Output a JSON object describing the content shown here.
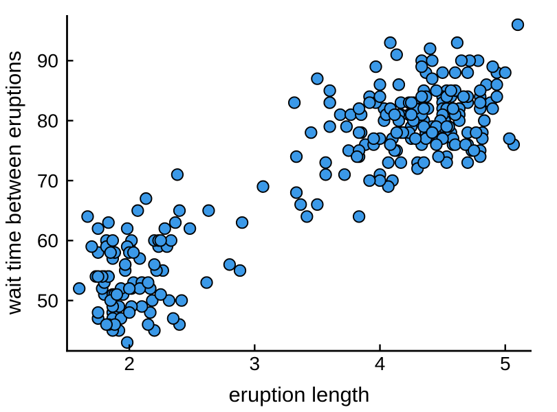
{
  "figure": {
    "background": "#ffffff"
  },
  "chart_data": {
    "type": "scatter",
    "title": "",
    "xlabel": "eruption length",
    "ylabel": "wait time between eruptions",
    "x_ticks": [
      2,
      3,
      4,
      5
    ],
    "y_ticks": [
      50,
      60,
      70,
      80,
      90
    ],
    "xlim": [
      1.5,
      5.21
    ],
    "ylim": [
      41.6,
      97.6
    ],
    "grid": false,
    "legend": "none",
    "marker": {
      "shape": "circle",
      "fill": "#3B99E8",
      "stroke": "#000000",
      "radius_px": 8.2
    },
    "axis_color": "#000000",
    "tick_direction": "in",
    "points": [
      [
        3.6,
        79
      ],
      [
        1.8,
        54
      ],
      [
        3.333,
        74
      ],
      [
        2.283,
        62
      ],
      [
        4.533,
        85
      ],
      [
        2.883,
        55
      ],
      [
        4.7,
        88
      ],
      [
        3.6,
        85
      ],
      [
        1.95,
        51
      ],
      [
        4.35,
        85
      ],
      [
        1.833,
        54
      ],
      [
        3.917,
        84
      ],
      [
        4.2,
        78
      ],
      [
        1.75,
        47
      ],
      [
        4.7,
        83
      ],
      [
        2.167,
        52
      ],
      [
        1.75,
        62
      ],
      [
        4.8,
        84
      ],
      [
        1.6,
        52
      ],
      [
        4.25,
        79
      ],
      [
        1.8,
        51
      ],
      [
        1.75,
        47
      ],
      [
        3.45,
        78
      ],
      [
        3.067,
        69
      ],
      [
        4.533,
        74
      ],
      [
        3.6,
        83
      ],
      [
        1.967,
        55
      ],
      [
        4.083,
        76
      ],
      [
        3.85,
        78
      ],
      [
        4.433,
        79
      ],
      [
        4.3,
        73
      ],
      [
        4.467,
        77
      ],
      [
        3.367,
        66
      ],
      [
        4.033,
        80
      ],
      [
        3.833,
        74
      ],
      [
        2.017,
        52
      ],
      [
        1.867,
        48
      ],
      [
        4.833,
        80
      ],
      [
        1.833,
        59
      ],
      [
        4.783,
        90
      ],
      [
        4.35,
        80
      ],
      [
        1.883,
        58
      ],
      [
        4.567,
        84
      ],
      [
        1.75,
        58
      ],
      [
        4.533,
        73
      ],
      [
        3.317,
        83
      ],
      [
        3.833,
        64
      ],
      [
        2.1,
        53
      ],
      [
        4.633,
        82
      ],
      [
        2.0,
        59
      ],
      [
        4.8,
        75
      ],
      [
        4.716,
        90
      ],
      [
        1.833,
        54
      ],
      [
        4.833,
        80
      ],
      [
        1.733,
        54
      ],
      [
        4.883,
        83
      ],
      [
        3.717,
        71
      ],
      [
        1.667,
        64
      ],
      [
        4.567,
        77
      ],
      [
        4.317,
        81
      ],
      [
        2.233,
        59
      ],
      [
        4.5,
        84
      ],
      [
        1.75,
        48
      ],
      [
        4.8,
        82
      ],
      [
        1.817,
        60
      ],
      [
        4.4,
        92
      ],
      [
        4.167,
        78
      ],
      [
        4.7,
        78
      ],
      [
        2.067,
        65
      ],
      [
        4.7,
        73
      ],
      [
        4.033,
        82
      ],
      [
        1.967,
        56
      ],
      [
        4.5,
        79
      ],
      [
        4.0,
        71
      ],
      [
        1.983,
        62
      ],
      [
        5.067,
        76
      ],
      [
        2.017,
        60
      ],
      [
        4.567,
        78
      ],
      [
        3.883,
        76
      ],
      [
        3.6,
        83
      ],
      [
        4.133,
        75
      ],
      [
        4.333,
        82
      ],
      [
        4.1,
        70
      ],
      [
        2.633,
        65
      ],
      [
        4.067,
        73
      ],
      [
        4.933,
        88
      ],
      [
        3.95,
        76
      ],
      [
        4.517,
        80
      ],
      [
        2.167,
        48
      ],
      [
        4.0,
        86
      ],
      [
        2.2,
        60
      ],
      [
        4.333,
        90
      ],
      [
        1.867,
        50
      ],
      [
        4.817,
        78
      ],
      [
        1.833,
        63
      ],
      [
        4.3,
        72
      ],
      [
        4.667,
        84
      ],
      [
        3.75,
        75
      ],
      [
        1.867,
        51
      ],
      [
        4.9,
        82
      ],
      [
        2.483,
        62
      ],
      [
        4.367,
        88
      ],
      [
        2.1,
        49
      ],
      [
        4.5,
        83
      ],
      [
        4.05,
        81
      ],
      [
        1.867,
        47
      ],
      [
        4.7,
        84
      ],
      [
        1.783,
        52
      ],
      [
        4.85,
        86
      ],
      [
        3.683,
        81
      ],
      [
        4.733,
        75
      ],
      [
        2.3,
        59
      ],
      [
        4.9,
        89
      ],
      [
        4.417,
        79
      ],
      [
        1.7,
        59
      ],
      [
        4.633,
        81
      ],
      [
        2.317,
        50
      ],
      [
        4.6,
        85
      ],
      [
        1.817,
        59
      ],
      [
        4.417,
        87
      ],
      [
        2.617,
        53
      ],
      [
        4.067,
        69
      ],
      [
        4.25,
        77
      ],
      [
        1.967,
        56
      ],
      [
        4.6,
        88
      ],
      [
        3.767,
        81
      ],
      [
        1.917,
        45
      ],
      [
        4.5,
        82
      ],
      [
        2.267,
        55
      ],
      [
        4.65,
        90
      ],
      [
        1.867,
        45
      ],
      [
        4.167,
        83
      ],
      [
        2.8,
        56
      ],
      [
        4.333,
        89
      ],
      [
        1.833,
        46
      ],
      [
        4.383,
        82
      ],
      [
        1.883,
        51
      ],
      [
        4.933,
        86
      ],
      [
        2.033,
        53
      ],
      [
        3.733,
        79
      ],
      [
        4.233,
        81
      ],
      [
        2.233,
        60
      ],
      [
        4.533,
        82
      ],
      [
        4.817,
        77
      ],
      [
        4.333,
        76
      ],
      [
        1.983,
        59
      ],
      [
        4.633,
        80
      ],
      [
        2.017,
        49
      ],
      [
        5.1,
        96
      ],
      [
        1.8,
        53
      ],
      [
        5.033,
        77
      ],
      [
        4.0,
        77
      ],
      [
        2.4,
        65
      ],
      [
        4.6,
        81
      ],
      [
        3.567,
        71
      ],
      [
        4.0,
        70
      ],
      [
        4.5,
        81
      ],
      [
        4.083,
        93
      ],
      [
        1.8,
        53
      ],
      [
        3.967,
        89
      ],
      [
        2.2,
        45
      ],
      [
        4.15,
        86
      ],
      [
        2.0,
        58
      ],
      [
        3.833,
        78
      ],
      [
        3.5,
        66
      ],
      [
        4.583,
        76
      ],
      [
        2.367,
        63
      ],
      [
        5.0,
        88
      ],
      [
        1.933,
        52
      ],
      [
        4.617,
        93
      ],
      [
        1.917,
        49
      ],
      [
        2.083,
        57
      ],
      [
        4.583,
        77
      ],
      [
        3.333,
        68
      ],
      [
        4.167,
        81
      ],
      [
        4.333,
        81
      ],
      [
        4.167,
        73
      ],
      [
        2.183,
        50
      ],
      [
        4.8,
        85
      ],
      [
        1.833,
        54
      ],
      [
        4.8,
        74
      ],
      [
        4.1,
        77
      ],
      [
        3.966,
        83
      ],
      [
        4.233,
        83
      ],
      [
        3.5,
        87
      ],
      [
        4.366,
        78
      ],
      [
        2.25,
        51
      ],
      [
        4.667,
        84
      ],
      [
        2.1,
        53
      ],
      [
        4.35,
        79
      ],
      [
        4.133,
        91
      ],
      [
        1.867,
        57
      ],
      [
        4.6,
        76
      ],
      [
        1.783,
        54
      ],
      [
        4.367,
        77
      ],
      [
        3.85,
        81
      ],
      [
        1.933,
        47
      ],
      [
        4.5,
        77
      ],
      [
        2.383,
        71
      ],
      [
        4.7,
        76
      ],
      [
        1.867,
        60
      ],
      [
        3.833,
        82
      ],
      [
        3.417,
        64
      ],
      [
        4.233,
        78
      ],
      [
        2.4,
        46
      ],
      [
        4.8,
        83
      ],
      [
        2.0,
        48
      ],
      [
        4.15,
        86
      ],
      [
        1.867,
        49
      ],
      [
        4.267,
        83
      ],
      [
        1.75,
        54
      ],
      [
        4.483,
        80
      ],
      [
        4.0,
        84
      ],
      [
        4.117,
        75
      ],
      [
        4.083,
        76
      ],
      [
        4.267,
        80
      ],
      [
        3.917,
        70
      ],
      [
        4.55,
        79
      ],
      [
        4.083,
        82
      ],
      [
        2.417,
        50
      ],
      [
        4.183,
        78
      ],
      [
        2.217,
        55
      ],
      [
        4.45,
        85
      ],
      [
        1.883,
        58
      ],
      [
        1.85,
        50
      ],
      [
        4.283,
        82
      ],
      [
        3.95,
        77
      ],
      [
        2.333,
        60
      ],
      [
        4.15,
        81
      ],
      [
        2.35,
        47
      ],
      [
        4.933,
        84
      ],
      [
        2.9,
        63
      ],
      [
        4.583,
        82
      ],
      [
        3.833,
        75
      ],
      [
        2.083,
        52
      ],
      [
        4.367,
        84
      ],
      [
        2.133,
        67
      ],
      [
        4.35,
        73
      ],
      [
        2.2,
        56
      ],
      [
        4.45,
        79
      ],
      [
        3.567,
        73
      ],
      [
        4.5,
        88
      ],
      [
        4.15,
        80
      ],
      [
        3.817,
        74
      ],
      [
        3.917,
        83
      ],
      [
        4.45,
        76
      ],
      [
        2.0,
        52
      ],
      [
        4.283,
        77
      ],
      [
        4.767,
        78
      ],
      [
        4.533,
        84
      ],
      [
        4.417,
        78
      ],
      [
        1.883,
        46
      ],
      [
        4.567,
        85
      ],
      [
        2.033,
        58
      ],
      [
        4.25,
        81
      ],
      [
        4.683,
        76
      ],
      [
        2.15,
        53
      ],
      [
        4.35,
        82
      ],
      [
        1.9,
        51
      ],
      [
        4.533,
        79
      ],
      [
        4.133,
        78
      ],
      [
        4.333,
        84
      ],
      [
        1.85,
        58
      ],
      [
        4.25,
        83
      ],
      [
        1.983,
        43
      ],
      [
        2.25,
        60
      ],
      [
        4.75,
        75
      ],
      [
        4.117,
        81
      ],
      [
        2.15,
        46
      ],
      [
        4.417,
        90
      ],
      [
        1.817,
        46
      ],
      [
        4.467,
        74
      ]
    ]
  }
}
